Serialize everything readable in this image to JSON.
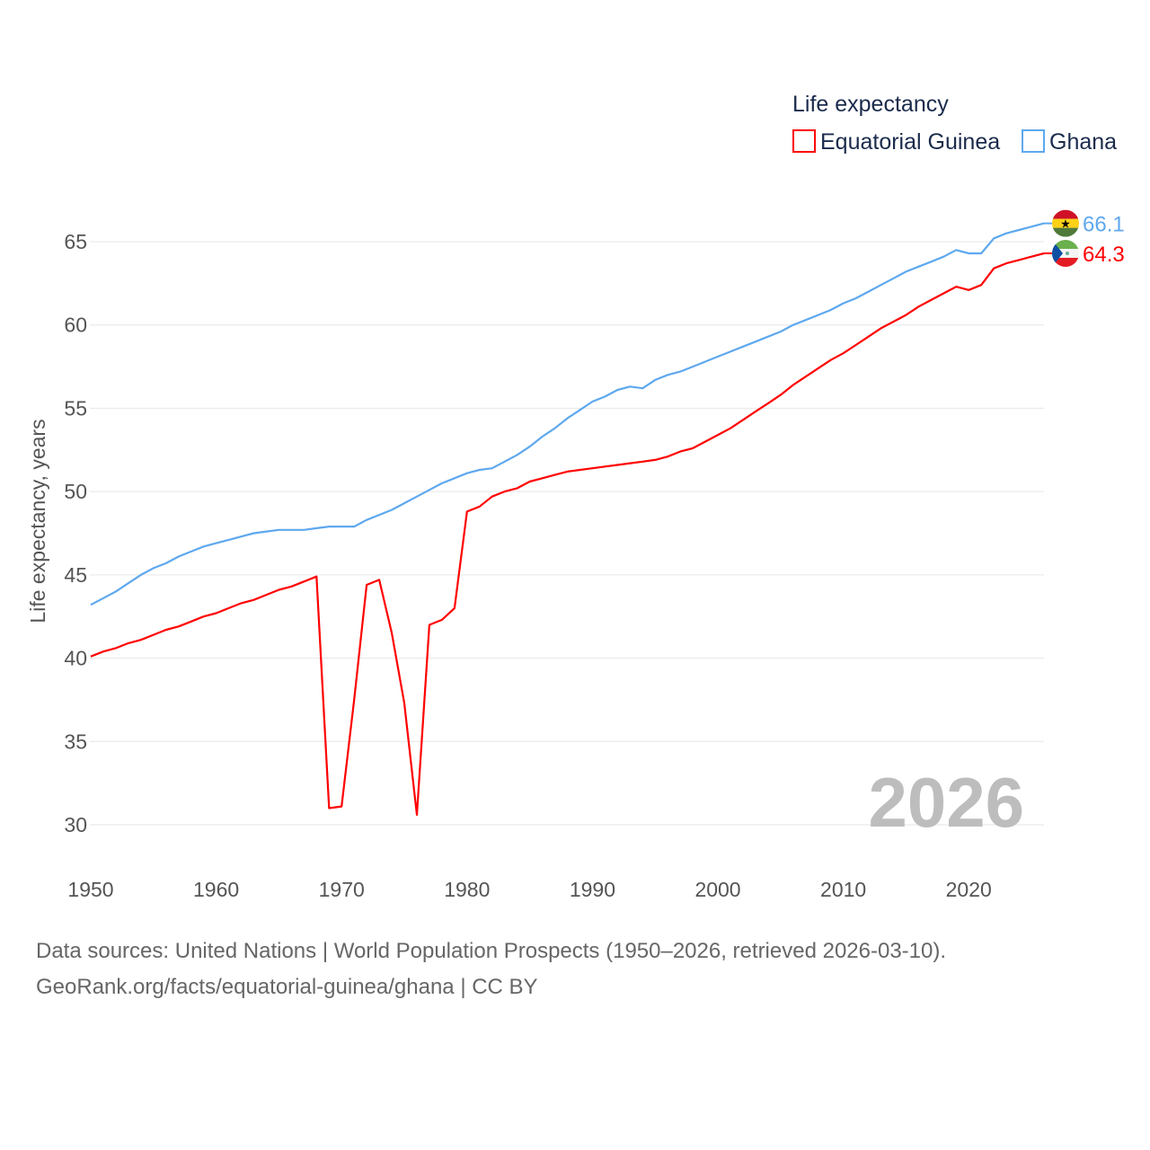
{
  "chart_data": {
    "type": "line",
    "title": "Life expectancy",
    "ylabel": "Life expectancy, years",
    "xlabel": "",
    "xlim": [
      1950,
      2026
    ],
    "ylim": [
      27.5,
      67.5
    ],
    "yticks": [
      30,
      35,
      40,
      45,
      50,
      55,
      60,
      65
    ],
    "xticks": [
      1950,
      1960,
      1970,
      1980,
      1990,
      2000,
      2010,
      2020
    ],
    "grid": true,
    "legend_position": "top-right",
    "year_label": "2026",
    "x_start": 1950,
    "series": [
      {
        "name": "Equatorial Guinea",
        "color": "#ff0000",
        "end_label": "64.3",
        "flag": "equatorial-guinea",
        "values": [
          40.1,
          40.4,
          40.6,
          40.9,
          41.1,
          41.4,
          41.7,
          41.9,
          42.2,
          42.5,
          42.7,
          43.0,
          43.3,
          43.5,
          43.8,
          44.1,
          44.3,
          44.6,
          44.9,
          31.0,
          31.1,
          37.5,
          44.4,
          44.7,
          41.5,
          37.3,
          30.6,
          42.0,
          42.3,
          43.0,
          48.8,
          49.1,
          49.7,
          50.0,
          50.2,
          50.6,
          50.8,
          51.0,
          51.2,
          51.3,
          51.4,
          51.5,
          51.6,
          51.7,
          51.8,
          51.9,
          52.1,
          52.4,
          52.6,
          53.0,
          53.4,
          53.8,
          54.3,
          54.8,
          55.3,
          55.8,
          56.4,
          56.9,
          57.4,
          57.9,
          58.3,
          58.8,
          59.3,
          59.8,
          60.2,
          60.6,
          61.1,
          61.5,
          61.9,
          62.3,
          62.1,
          62.4,
          63.4,
          63.7,
          63.9,
          64.1,
          64.3
        ]
      },
      {
        "name": "Ghana",
        "color": "#5ea8ee",
        "end_label": "66.1",
        "flag": "ghana",
        "values": [
          43.2,
          43.6,
          44.0,
          44.5,
          45.0,
          45.4,
          45.7,
          46.1,
          46.4,
          46.7,
          46.9,
          47.1,
          47.3,
          47.5,
          47.6,
          47.7,
          47.7,
          47.7,
          47.8,
          47.9,
          47.9,
          47.9,
          48.3,
          48.6,
          48.9,
          49.3,
          49.7,
          50.1,
          50.5,
          50.8,
          51.1,
          51.3,
          51.4,
          51.8,
          52.2,
          52.7,
          53.3,
          53.8,
          54.4,
          54.9,
          55.4,
          55.7,
          56.1,
          56.3,
          56.2,
          56.7,
          57.0,
          57.2,
          57.5,
          57.8,
          58.1,
          58.4,
          58.7,
          59.0,
          59.3,
          59.6,
          60.0,
          60.3,
          60.6,
          60.9,
          61.3,
          61.6,
          62.0,
          62.4,
          62.8,
          63.2,
          63.5,
          63.8,
          64.1,
          64.5,
          64.3,
          64.3,
          65.2,
          65.5,
          65.7,
          65.9,
          66.1
        ]
      }
    ]
  },
  "footer": {
    "line1": "Data sources: United Nations | World Population Prospects (1950–2026, retrieved 2026-03-10).",
    "line2": "GeoRank.org/facts/equatorial-guinea/ghana | CC BY"
  }
}
